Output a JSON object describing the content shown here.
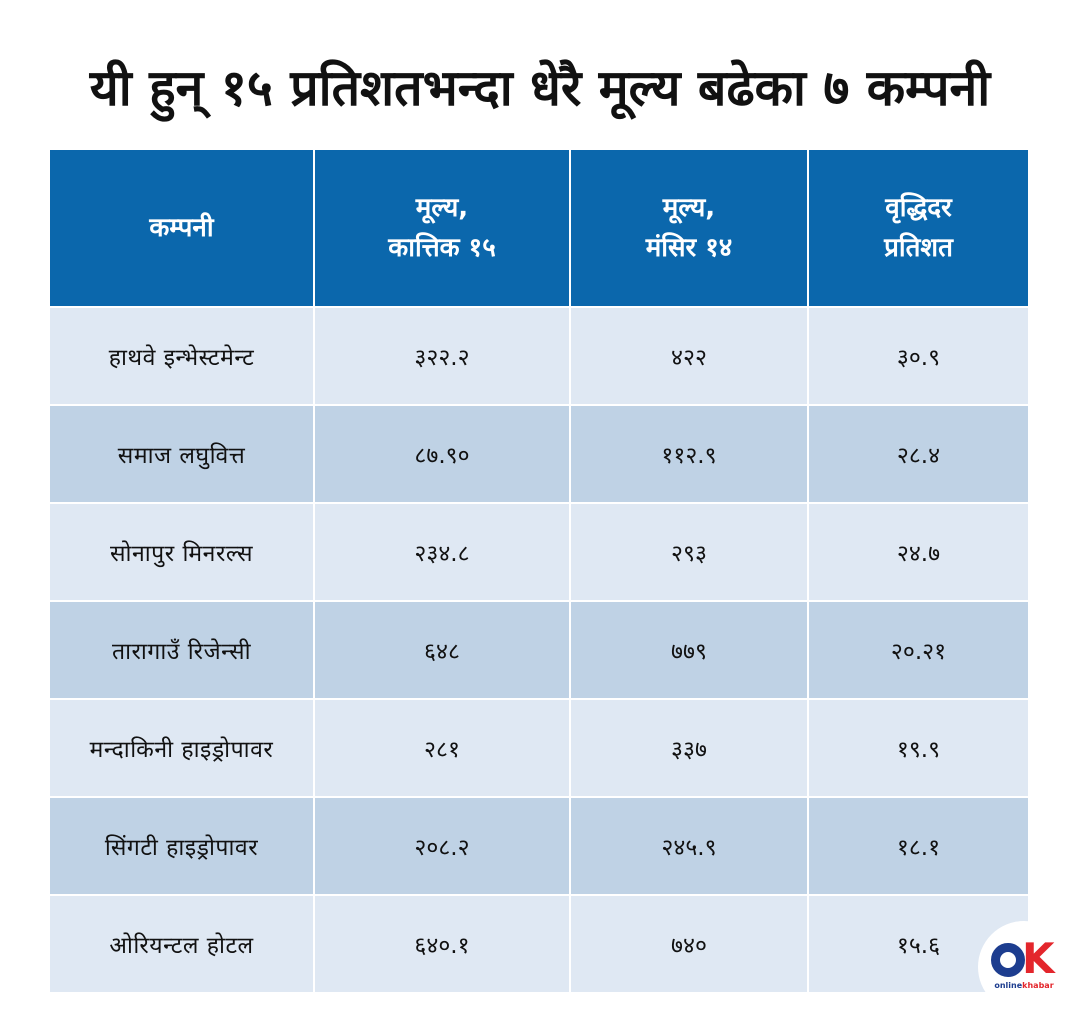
{
  "title": "यी हुन् १५ प्रतिशतभन्दा धेरै मूल्य बढेका ७ कम्पनी",
  "table": {
    "headers": {
      "company": "कम्पनी",
      "price_kartik_line1": "मूल्य,",
      "price_kartik_line2": "कात्तिक १५",
      "price_mangsir_line1": "मूल्य,",
      "price_mangsir_line2": "मंसिर १४",
      "growth_line1": "वृद्धिदर",
      "growth_line2": "प्रतिशत"
    },
    "rows": [
      {
        "company": "हाथवे इन्भेस्टमेन्ट",
        "kartik": "३२२.२",
        "mangsir": "४२२",
        "growth": "३०.९"
      },
      {
        "company": "समाज लघुवित्त",
        "kartik": "८७.९०",
        "mangsir": "११२.९",
        "growth": "२८.४"
      },
      {
        "company": "सोनापुर मिनरल्स",
        "kartik": "२३४.८",
        "mangsir": "२९३",
        "growth": "२४.७"
      },
      {
        "company": "तारागाउँ रिजेन्सी",
        "kartik": "६४८",
        "mangsir": "७७९",
        "growth": "२०.२१"
      },
      {
        "company": "मन्दाकिनी हाइड्रोपावर",
        "kartik": "२८१",
        "mangsir": "३३७",
        "growth": "१९.९"
      },
      {
        "company": "सिंगटी हाइड्रोपावर",
        "kartik": "२०८.२",
        "mangsir": "२४५.९",
        "growth": "१८.१"
      },
      {
        "company": "ओरियन्टल होटल",
        "kartik": "६४०.१",
        "mangsir": "७४०",
        "growth": "१५.६"
      }
    ]
  },
  "logo": {
    "brand_prefix": "online",
    "brand_suffix": "khabar",
    "mark_letter": "K"
  }
}
